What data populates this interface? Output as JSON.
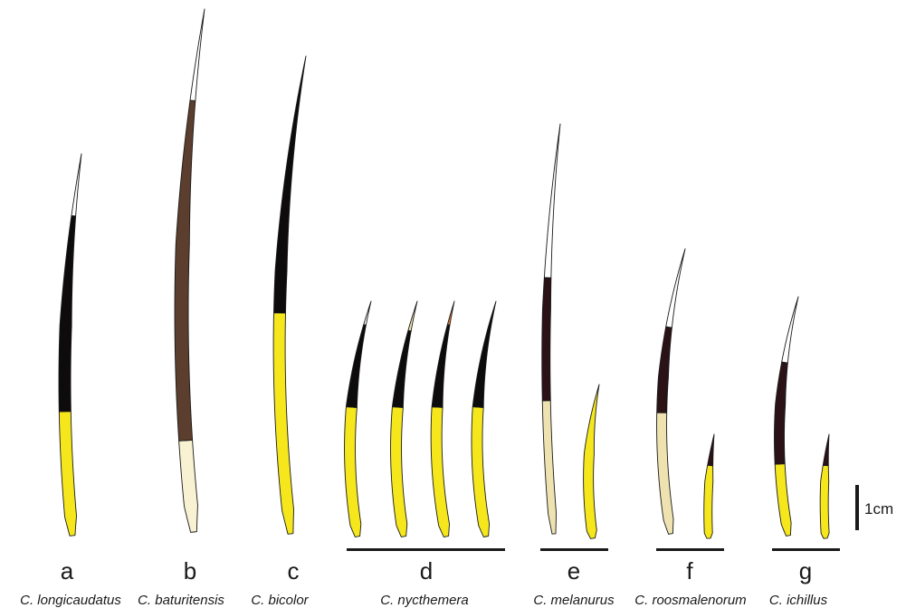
{
  "colors": {
    "black": "#0d0b0c",
    "yellow": "#f5e71c",
    "brown": "#5b3e2d",
    "cream": "#f8f1d2",
    "white": "#ffffff",
    "beige": "#eee2b0",
    "orange": "#e07a3a",
    "dark_maroon": "#2a1216",
    "outline": "#1a1a1a"
  },
  "specimens": [
    {
      "letter": "a",
      "species": "C. longicaudatus"
    },
    {
      "letter": "b",
      "species": "C. baturitensis"
    },
    {
      "letter": "c",
      "species": "C. bicolor"
    },
    {
      "letter": "d",
      "species": "C. nycthemera"
    },
    {
      "letter": "e",
      "species": "C. melanurus"
    },
    {
      "letter": "f",
      "species": "C. roosmalenorum"
    },
    {
      "letter": "g",
      "species": "C. ichillus"
    }
  ],
  "scale_bar": {
    "label": "1cm"
  }
}
